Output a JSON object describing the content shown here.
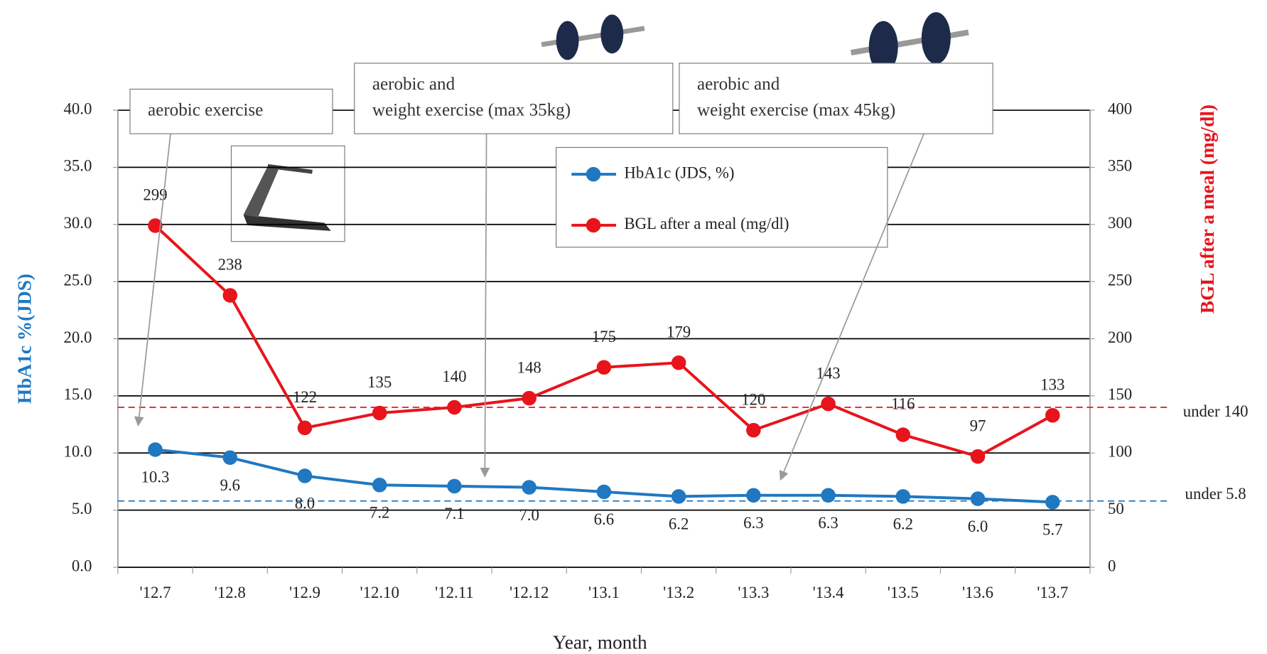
{
  "chart_data": {
    "type": "line",
    "x_label": "Year, month",
    "y_label": "HbA1c %(JDS)",
    "y2_label": "BGL after a meal (mg/dl)",
    "categories": [
      "'12.7",
      "'12.8",
      "'12.9",
      "'12.10",
      "'12.11",
      "'12.12",
      "'13.1",
      "'13.2",
      "'13.3",
      "'13.4",
      "'13.5",
      "'13.6",
      "'13.7"
    ],
    "series": [
      {
        "name": "HbA1c (JDS, %)",
        "color": "#1f78c1",
        "axis": "y",
        "values": [
          10.3,
          9.6,
          8.0,
          7.2,
          7.1,
          7.0,
          6.6,
          6.2,
          6.3,
          6.3,
          6.2,
          6.0,
          5.7
        ],
        "value_labels": [
          "10.3",
          "9.6",
          "8.0",
          "7.2",
          "7.1",
          "7.0",
          "6.6",
          "6.2",
          "6.3",
          "6.3",
          "6.2",
          "6.0",
          "5.7"
        ]
      },
      {
        "name": "BGL after a meal (mg/dl)",
        "color": "#e8141c",
        "axis": "y2",
        "values": [
          299,
          238,
          122,
          135,
          140,
          148,
          175,
          179,
          120,
          143,
          116,
          97,
          133
        ]
      }
    ],
    "ylim": [
      0,
      40
    ],
    "yticks": [
      {
        "value": 0,
        "label": "0.0"
      },
      {
        "value": 5,
        "label": "5.0"
      },
      {
        "value": 10,
        "label": "10.0"
      },
      {
        "value": 15,
        "label": "15.0"
      },
      {
        "value": 20,
        "label": "20.0"
      },
      {
        "value": 25,
        "label": "25.0"
      },
      {
        "value": 30,
        "label": "30.0"
      },
      {
        "value": 35,
        "label": "35.0"
      },
      {
        "value": 40,
        "label": "40.0"
      }
    ],
    "y2lim": [
      0,
      400
    ],
    "y2ticks": [
      0,
      50,
      100,
      150,
      200,
      250,
      300,
      350,
      400
    ],
    "grid": true,
    "reference_lines": [
      {
        "value": 140,
        "axis": "y2",
        "label": "under 140",
        "color": "#e8141c"
      },
      {
        "value": 5.8,
        "axis": "y",
        "label": "under 5.8",
        "color": "#1f78c1"
      }
    ],
    "annotations": [
      {
        "lines": [
          "aerobic exercise"
        ]
      },
      {
        "lines": [
          "aerobic and",
          "weight exercise (max 35kg)"
        ]
      },
      {
        "lines": [
          "aerobic and",
          "weight exercise (max 45kg)"
        ]
      }
    ]
  }
}
